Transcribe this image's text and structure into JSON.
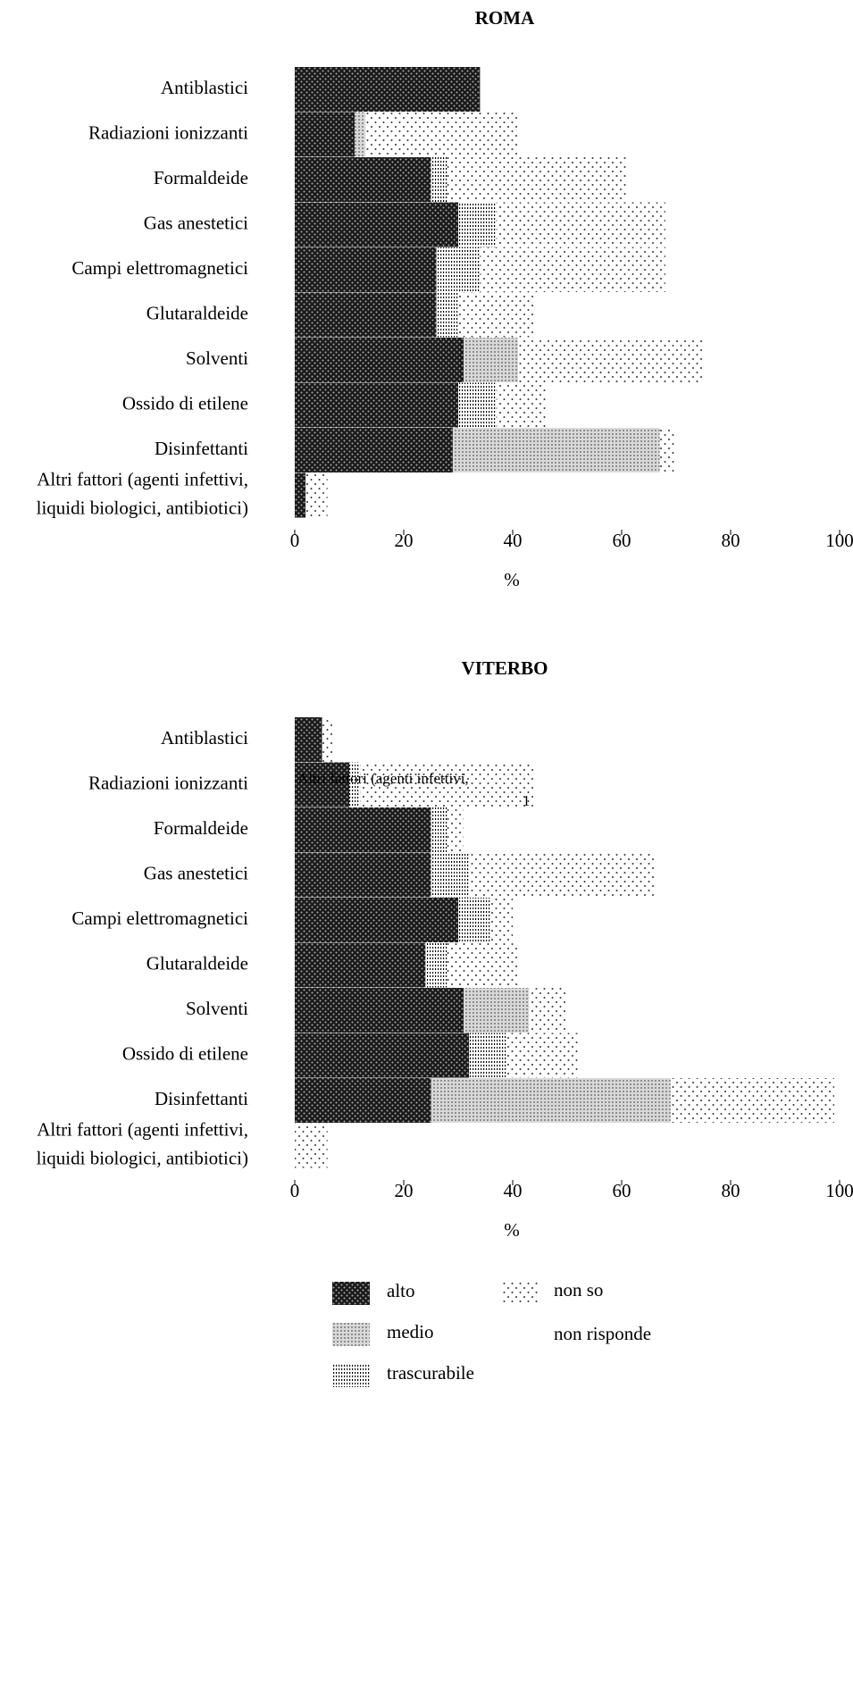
{
  "chart_data": [
    {
      "type": "hbar-stacked",
      "title": "ROMA",
      "categories": [
        "Antiblastici",
        "Radiazioni ionizzanti",
        "Formaldeide",
        "Gas anestetici",
        "Campi elettromagnetici",
        "Glutaraldeide",
        "Solventi",
        "Ossido di etilene",
        "Disinfettanti",
        "Altri fattori (agenti infettivi, liquidi biologici, antibiotici)"
      ],
      "series": [
        {
          "name": "alto",
          "color": "#1a1a1a",
          "values": [
            34,
            11,
            25,
            30,
            26,
            26,
            31,
            30,
            29,
            2
          ]
        },
        {
          "name": "medio",
          "color": "#9a9a9a",
          "values": [
            0,
            2,
            0,
            0,
            0,
            0,
            10,
            0,
            38,
            0
          ]
        },
        {
          "name": "trascurabile",
          "color": "#000000",
          "values": [
            0,
            0,
            3,
            7,
            8,
            4,
            0,
            7,
            0,
            0
          ]
        },
        {
          "name": "non so",
          "color": "#555555",
          "values": [
            0,
            28,
            33,
            31,
            34,
            14,
            34,
            9,
            3,
            4
          ]
        },
        {
          "name": "non risponde",
          "color": "#ffffff",
          "values": [
            0,
            0,
            0,
            0,
            0,
            29,
            0,
            32,
            29,
            0
          ]
        }
      ],
      "xlim": [
        0,
        100
      ],
      "xticks": [
        0,
        20,
        40,
        60,
        80,
        100
      ],
      "xlabel": "%"
    },
    {
      "type": "hbar-stacked",
      "title": "VITERBO",
      "categories": [
        "Antiblastici",
        "Radiazioni ionizzanti",
        "Formaldeide",
        "Gas anestetici",
        "Campi elettromagnetici",
        "Glutaraldeide",
        "Solventi",
        "Ossido di etilene",
        "Disinfettanti",
        "Altri fattori (agenti infettivi, liquidi biologici, antibiotici)"
      ],
      "series": [
        {
          "name": "alto",
          "color": "#1a1a1a",
          "values": [
            5,
            10,
            25,
            25,
            30,
            24,
            31,
            32,
            25,
            0
          ]
        },
        {
          "name": "medio",
          "color": "#9a9a9a",
          "values": [
            0,
            0,
            0,
            0,
            0,
            0,
            12,
            0,
            44,
            0
          ]
        },
        {
          "name": "trascurabile",
          "color": "#000000",
          "values": [
            0,
            2,
            3,
            7,
            6,
            4,
            0,
            7,
            0,
            0
          ]
        },
        {
          "name": "non so",
          "color": "#555555",
          "values": [
            2,
            32,
            3,
            34,
            4,
            13,
            7,
            13,
            30,
            6
          ]
        },
        {
          "name": "non risponde",
          "color": "#ffffff",
          "values": [
            29,
            0,
            31,
            0,
            26,
            33,
            33,
            35,
            0,
            0
          ]
        }
      ],
      "xlim": [
        0,
        100
      ],
      "xticks": [
        0,
        20,
        40,
        60,
        80,
        100
      ],
      "xlabel": "%",
      "annotations": [
        "Altri fattori (agenti infettivi,",
        "1"
      ]
    }
  ]
}
